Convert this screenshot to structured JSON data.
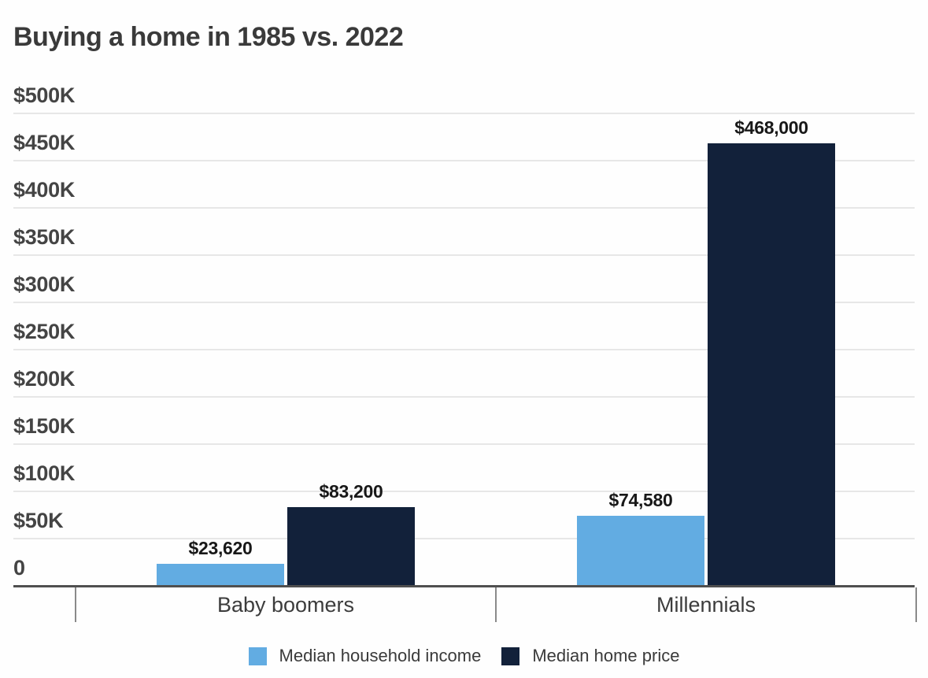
{
  "title": "Buying a home in 1985 vs. 2022",
  "chart_data": {
    "type": "bar",
    "title": "Buying a home in 1985 vs. 2022",
    "categories": [
      "Baby boomers",
      "Millennials"
    ],
    "series": [
      {
        "name": "Median household income",
        "color": "#62ace2",
        "values": [
          23620,
          74580
        ],
        "labels": [
          "$23,620",
          "$74,580"
        ]
      },
      {
        "name": "Median home price",
        "color": "#12213a",
        "values": [
          83200,
          468000
        ],
        "labels": [
          "$83,200",
          "$468,000"
        ]
      }
    ],
    "xlabel": "",
    "ylabel": "",
    "y_axis": {
      "max": 500000,
      "min": 0,
      "ticks": [
        {
          "value": 500000,
          "label": "$500K"
        },
        {
          "value": 450000,
          "label": "$450K"
        },
        {
          "value": 400000,
          "label": "$400K"
        },
        {
          "value": 350000,
          "label": "$350K"
        },
        {
          "value": 300000,
          "label": "$300K"
        },
        {
          "value": 250000,
          "label": "$250K"
        },
        {
          "value": 200000,
          "label": "$200K"
        },
        {
          "value": 150000,
          "label": "$150K"
        },
        {
          "value": 100000,
          "label": "$100K"
        },
        {
          "value": 50000,
          "label": "$50K"
        },
        {
          "value": 0,
          "label": "0"
        }
      ]
    },
    "grid": true,
    "legend_position": "bottom"
  },
  "colors": {
    "income_bar": "#62ace2",
    "home_price_bar": "#12213a",
    "gridline": "#e7e7e7",
    "axis_line": "#4f4f4f",
    "text": "#3a3a3a",
    "background": "#fefefe"
  }
}
